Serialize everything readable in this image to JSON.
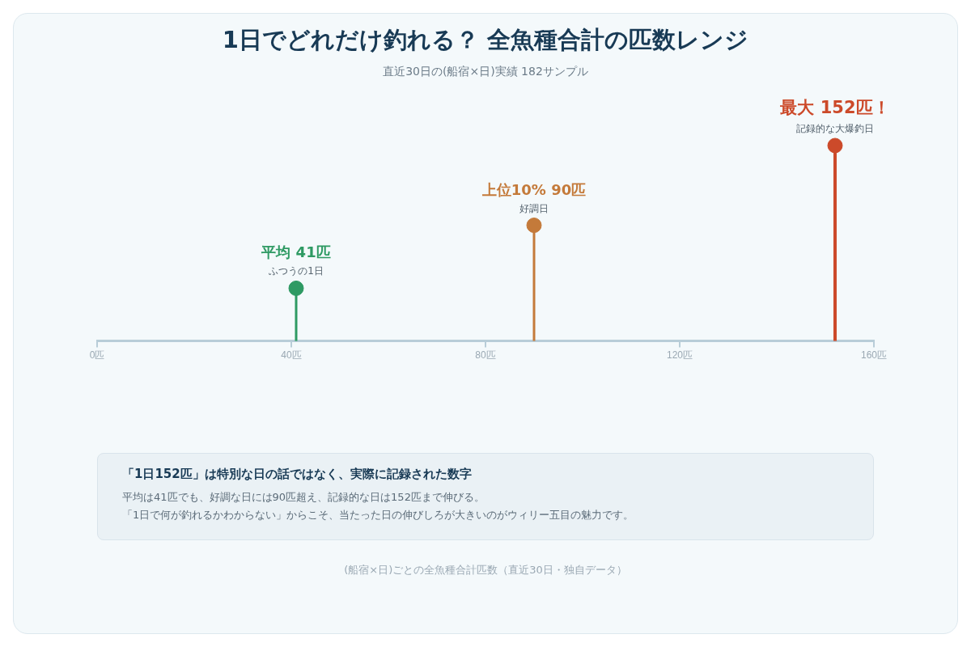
{
  "chart_data": {
    "type": "lollipop",
    "title": "1日でどれだけ釣れる？ 全魚種合計の匹数レンジ",
    "subtitle": "直近30日の(船宿×日)実績 182サンプル",
    "x": [
      41,
      90,
      152
    ],
    "values": [
      41,
      90,
      152
    ],
    "tick_labels": "x",
    "colors": [
      "#2e9a63",
      "#c47a3a",
      "#cc4a2a"
    ],
    "value_labels": [
      "平均 41匹",
      "上位10% 90匹",
      "最大 152匹！"
    ],
    "xlim": [
      0,
      160
    ],
    "xticks": [
      {
        "value": 0,
        "label": "0匹"
      },
      {
        "value": 40,
        "label": "40匹"
      },
      {
        "value": 80,
        "label": "80匹"
      },
      {
        "value": 120,
        "label": "120匹"
      },
      {
        "value": 160,
        "label": "160匹"
      }
    ],
    "grid": false,
    "legend": false,
    "annotations": [
      {
        "text": "ふつうの1日",
        "x": 41,
        "y": 41
      },
      {
        "text": "好調日",
        "x": 90,
        "y": 90
      },
      {
        "text": "記録的な大爆釣日",
        "x": 152,
        "y": 152
      },
      "「1日152匹」は特別な日の話ではなく、実際に記録された数字",
      "平均は41匹でも、好調な日には90匹超え、記録的な日は152匹まで伸びる。",
      "「1日で何が釣れるかわからない」からこそ、当たった日の伸びしろが大きいのがウィリー五目の魅力です。",
      "(船宿×日)ごとの全魚種合計匹数（直近30日・独自データ）"
    ]
  }
}
